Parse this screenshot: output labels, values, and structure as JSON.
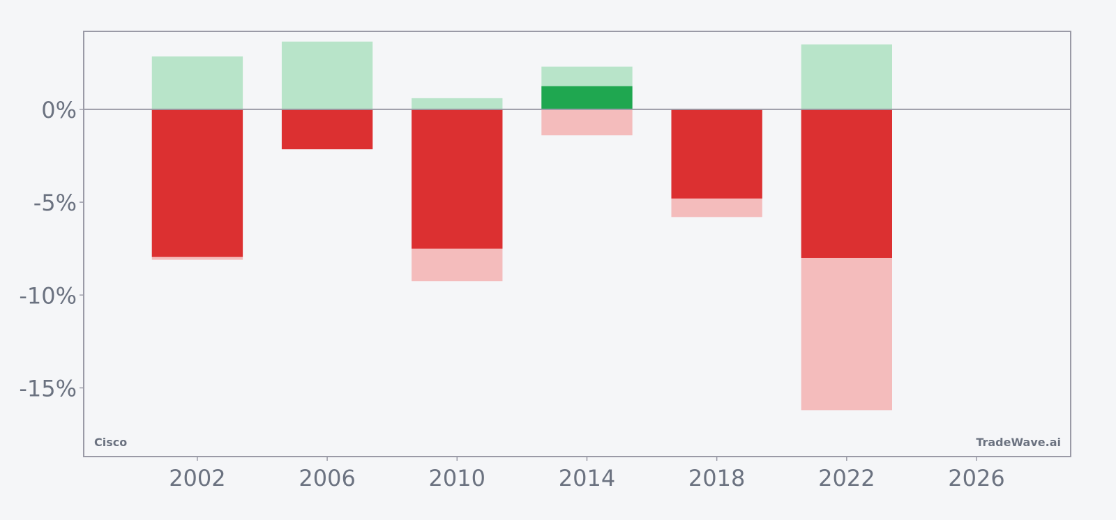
{
  "chart_data": {
    "type": "bar",
    "title": "",
    "xlabel": "",
    "ylabel": "",
    "xlim": [
      1998.5,
      2028.9
    ],
    "ylim": [
      -18.7,
      4.2
    ],
    "x_ticks": [
      2002,
      2006,
      2010,
      2014,
      2018,
      2022,
      2026
    ],
    "x_tick_labels": [
      "2002",
      "2006",
      "2010",
      "2014",
      "2018",
      "2022",
      "2026"
    ],
    "y_ticks": [
      0,
      -5,
      -10,
      -15
    ],
    "y_tick_labels": [
      "0%",
      "-5%",
      "-10%",
      "-15%"
    ],
    "grid": false,
    "bar_width_years": 2.8,
    "colors": {
      "positive_strong": "#1fa750",
      "positive_light": "#b8e4c9",
      "negative_strong": "#dc3031",
      "negative_light": "#f4bcbc",
      "axis": "#9a9aa6",
      "text": "#6b7280",
      "background": "#f5f6f8"
    },
    "series": [
      {
        "x": 2002,
        "light_pos": 2.85,
        "light_neg": -8.1,
        "strong": -7.95
      },
      {
        "x": 2006,
        "light_pos": 3.65,
        "light_neg": -2.15,
        "strong": -2.15
      },
      {
        "x": 2010,
        "light_pos": 0.6,
        "light_neg": -9.25,
        "strong": -7.5
      },
      {
        "x": 2014,
        "light_pos": 2.3,
        "light_neg": -1.4,
        "strong": 1.25
      },
      {
        "x": 2018,
        "light_pos": 0,
        "light_neg": -5.8,
        "strong": -4.8
      },
      {
        "x": 2022,
        "light_pos": 3.5,
        "light_neg": -16.2,
        "strong": -8.0
      }
    ]
  },
  "labels": {
    "company": "Cisco",
    "brand": "TradeWave.ai"
  }
}
